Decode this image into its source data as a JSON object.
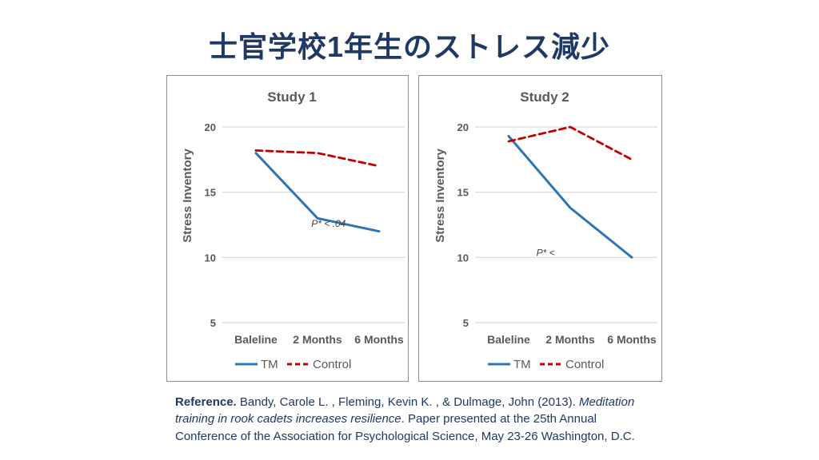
{
  "slide": {
    "title": "士官学校1年生のストレス減少",
    "title_color": "#1F3864"
  },
  "chart_data": [
    {
      "type": "line",
      "title": "Study 1",
      "xlabel": "",
      "ylabel": "Stress Inventory",
      "categories": [
        "Baleline",
        "2 Months",
        "6 Months"
      ],
      "yticks": [
        20,
        15,
        10,
        5
      ],
      "ylim": [
        4,
        21
      ],
      "grid": true,
      "legend_position": "bottom",
      "annotation": {
        "text": "P* < .04",
        "at_category": 1.9,
        "value": 12.35
      },
      "series": [
        {
          "name": "TM",
          "values": [
            18,
            13,
            12
          ],
          "color": "#2E75B6",
          "dash": "solid"
        },
        {
          "name": "Control",
          "values": [
            18.2,
            18,
            17
          ],
          "color": "#C00000",
          "dash": "dashed"
        }
      ]
    },
    {
      "type": "line",
      "title": "Study 2",
      "xlabel": "",
      "ylabel": "Stress Inventory",
      "categories": [
        "Baleline",
        "2 Months",
        "6 Months"
      ],
      "yticks": [
        20,
        15,
        10,
        5
      ],
      "ylim": [
        4,
        21
      ],
      "grid": true,
      "legend_position": "bottom",
      "annotation": {
        "text": "P* <",
        "at_category": 1.45,
        "value": 10.1
      },
      "series": [
        {
          "name": "TM",
          "values": [
            19.3,
            13.8,
            10
          ],
          "color": "#2E75B6",
          "dash": "solid"
        },
        {
          "name": "Control",
          "values": [
            18.9,
            20,
            17.5
          ],
          "color": "#C00000",
          "dash": "dashed"
        }
      ]
    }
  ],
  "reference": {
    "label": "Reference.",
    "authors": " Bandy, Carole L. , Fleming, Kevin K. , & Dulmage, John (2013). ",
    "paper_title": "Meditation training in rook cadets increases resilience",
    "rest": ". Paper presented at the 25th Annual Conference of the Association for Psychological Science, May 23-26 Washington, D.C."
  },
  "colors": {
    "tm_line": "#2E75B6",
    "control_line": "#C00000",
    "axis_text": "#595959",
    "gridline": "#D9D9D9",
    "panel_border": "#8C8C8C",
    "navy_text": "#1F3864"
  }
}
